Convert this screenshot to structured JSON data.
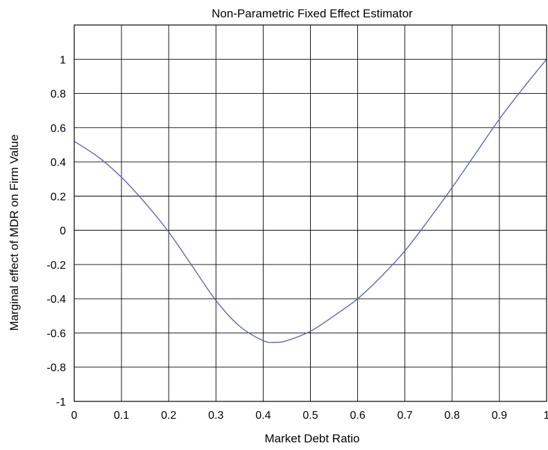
{
  "chart_data": {
    "type": "line",
    "title": "Non-Parametric Fixed Effect Estimator",
    "xlabel": "Market Debt Ratio",
    "ylabel": "Marginal effect of MDR on Firm Value",
    "xlim": [
      0,
      1
    ],
    "ylim": [
      -1,
      1.2
    ],
    "grid": true,
    "x_ticks": [
      "0",
      "0.1",
      "0.2",
      "0.3",
      "0.4",
      "0.5",
      "0.6",
      "0.7",
      "0.8",
      "0.9",
      "1"
    ],
    "y_ticks": [
      "1",
      "0.8",
      "0.6",
      "0.4",
      "0.2",
      "0",
      "-0.2",
      "-0.4",
      "-0.6",
      "-0.8",
      "-1"
    ],
    "series": [
      {
        "color": "#5b63b5",
        "x": [
          0.0,
          0.05,
          0.1,
          0.15,
          0.2,
          0.25,
          0.3,
          0.35,
          0.4,
          0.425,
          0.45,
          0.5,
          0.55,
          0.6,
          0.65,
          0.7,
          0.75,
          0.8,
          0.85,
          0.9,
          0.95,
          1.0
        ],
        "y": [
          0.52,
          0.43,
          0.31,
          0.16,
          -0.01,
          -0.21,
          -0.41,
          -0.56,
          -0.645,
          -0.655,
          -0.645,
          -0.59,
          -0.5,
          -0.4,
          -0.27,
          -0.12,
          0.06,
          0.25,
          0.45,
          0.65,
          0.83,
          1.0
        ]
      }
    ]
  }
}
